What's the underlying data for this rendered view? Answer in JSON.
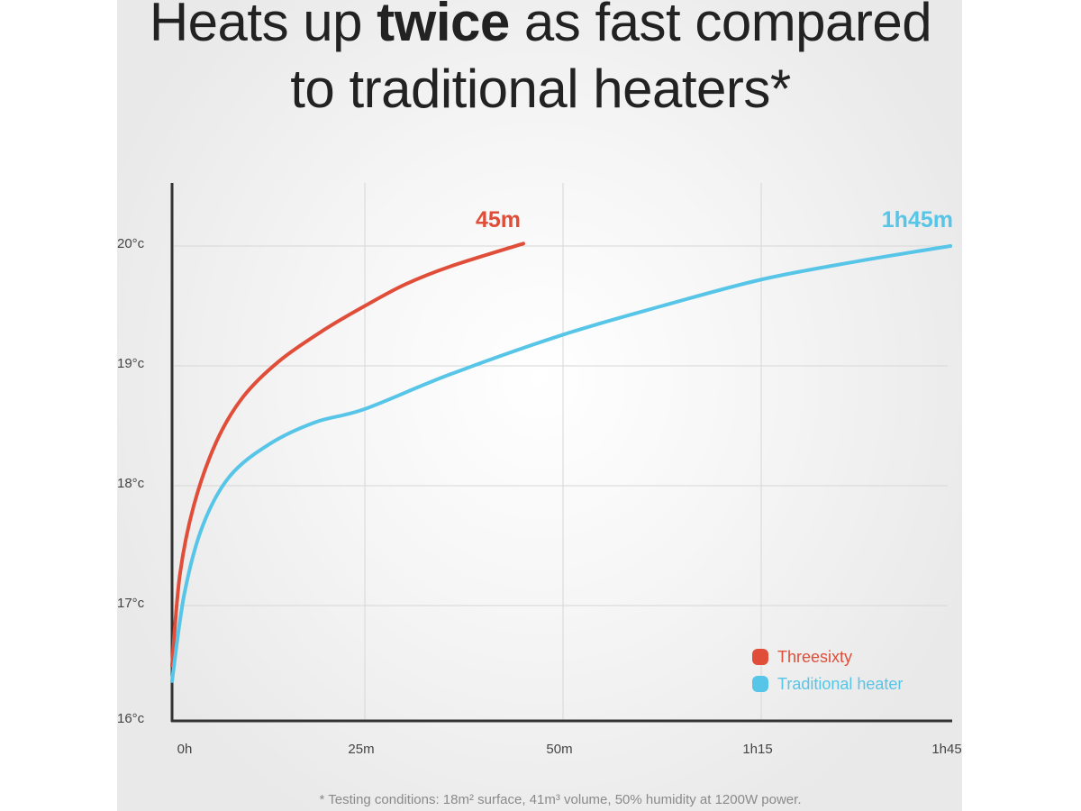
{
  "title": {
    "pre": "Heats up ",
    "bold": "twice",
    "post": " as fast compared",
    "line2": "to traditional heaters*"
  },
  "footnote": "* Testing conditions: 18m² surface, 41m³ volume, 50% humidity at 1200W power.",
  "chart_data": {
    "type": "line",
    "title": "Heats up twice as fast compared to traditional heaters*",
    "xlabel": "",
    "ylabel": "",
    "x_ticks": [
      {
        "label": "0h",
        "minutes": 0
      },
      {
        "label": "25m",
        "minutes": 25
      },
      {
        "label": "50m",
        "minutes": 50
      },
      {
        "label": "1h15",
        "minutes": 75
      },
      {
        "label": "1h45",
        "minutes": 105
      }
    ],
    "y_ticks": [
      {
        "label": "16°c",
        "value": 16
      },
      {
        "label": "17°c",
        "value": 17
      },
      {
        "label": "18°c",
        "value": 18
      },
      {
        "label": "19°c",
        "value": 19
      },
      {
        "label": "20°c",
        "value": 20
      }
    ],
    "ylim": [
      16,
      20.5
    ],
    "grid": true,
    "legend_position": "bottom-right",
    "series": [
      {
        "name": "Threesixty",
        "color": "#e04e39",
        "end_label": "45m",
        "x": [
          0,
          1,
          2.8,
          5.7,
          9.2,
          13.9,
          19.7,
          25,
          30.1,
          35.8,
          45
        ],
        "y": [
          16.5,
          17.25,
          17.83,
          18.36,
          18.74,
          19.04,
          19.3,
          19.5,
          19.68,
          19.83,
          20.02
        ]
      },
      {
        "name": "Traditional heater",
        "color": "#56c5e8",
        "end_label": "1h45m",
        "x": [
          0,
          1.6,
          4,
          7.5,
          12.7,
          18.6,
          25,
          35.8,
          50,
          62.5,
          75,
          90,
          105
        ],
        "y": [
          16.37,
          17.1,
          17.67,
          18.08,
          18.35,
          18.53,
          18.64,
          18.93,
          19.26,
          19.5,
          19.72,
          19.87,
          20.0
        ]
      }
    ]
  }
}
